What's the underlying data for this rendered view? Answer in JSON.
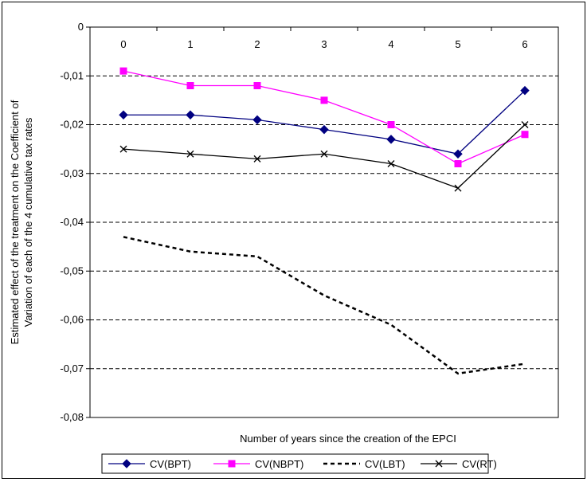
{
  "chart_data": {
    "type": "line",
    "xlabel": "Number of years since the creation of the EPCI",
    "ylabel": "Estimated effect of the treatment on the Coefficient of Variation of each of the 4 cumulative tax rates",
    "ylabel_lines": [
      "Estimated effect of the treatment on the Coefficient of",
      "Variation of each of the 4 cumulative tax rates"
    ],
    "categories": [
      "0",
      "1",
      "2",
      "3",
      "4",
      "5",
      "6"
    ],
    "ylim": [
      -0.08,
      0
    ],
    "yticks": [
      0,
      -0.01,
      -0.02,
      -0.03,
      -0.04,
      -0.05,
      -0.06,
      -0.07,
      -0.08
    ],
    "ytick_labels": [
      "0",
      "-0,01",
      "-0,02",
      "-0,03",
      "-0,04",
      "-0,05",
      "-0,06",
      "-0,07",
      "-0,08"
    ],
    "x_axis_position": "top",
    "grid": "horizontal dashed",
    "legend_position": "bottom",
    "series": [
      {
        "name": "CV(BPT)",
        "values": [
          -0.018,
          -0.018,
          -0.019,
          -0.021,
          -0.023,
          -0.026,
          -0.013
        ],
        "color": "#000080",
        "marker": "diamond",
        "line": "solid"
      },
      {
        "name": "CV(NBPT)",
        "values": [
          -0.009,
          -0.012,
          -0.012,
          -0.015,
          -0.02,
          -0.028,
          -0.022
        ],
        "color": "#ff00ff",
        "marker": "square",
        "line": "solid"
      },
      {
        "name": "CV(LBT)",
        "values": [
          -0.043,
          -0.046,
          -0.047,
          -0.055,
          -0.061,
          -0.071,
          -0.069
        ],
        "color": "#000000",
        "marker": "none",
        "line": "dashed"
      },
      {
        "name": "CV(RT)",
        "values": [
          -0.025,
          -0.026,
          -0.027,
          -0.026,
          -0.028,
          -0.033,
          -0.02
        ],
        "color": "#000000",
        "marker": "x",
        "line": "solid"
      }
    ]
  }
}
